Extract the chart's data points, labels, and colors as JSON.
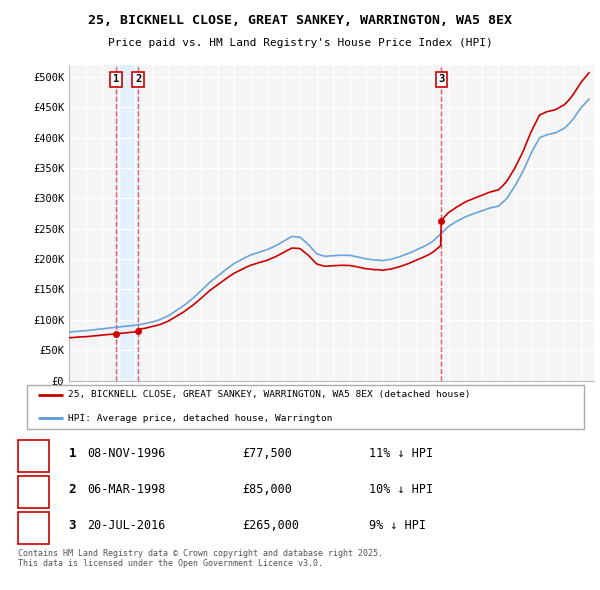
{
  "title": "25, BICKNELL CLOSE, GREAT SANKEY, WARRINGTON, WA5 8EX",
  "subtitle": "Price paid vs. HM Land Registry's House Price Index (HPI)",
  "ylim": [
    0,
    520000
  ],
  "yticks": [
    0,
    50000,
    100000,
    150000,
    200000,
    250000,
    300000,
    350000,
    400000,
    450000,
    500000
  ],
  "ytick_labels": [
    "£0",
    "£50K",
    "£100K",
    "£150K",
    "£200K",
    "£250K",
    "£300K",
    "£350K",
    "£400K",
    "£450K",
    "£500K"
  ],
  "xlim_start": 1994.0,
  "xlim_end": 2025.8,
  "hpi_color": "#5b9bd5",
  "price_color": "#cc0000",
  "dashed_line_color": "#e06060",
  "shade_color": "#ddeeff",
  "legend_label_red": "25, BICKNELL CLOSE, GREAT SANKEY, WARRINGTON, WA5 8EX (detached house)",
  "legend_label_blue": "HPI: Average price, detached house, Warrington",
  "transaction_labels": [
    "1",
    "2",
    "3"
  ],
  "transaction_dates": [
    1996.86,
    1998.18,
    2016.55
  ],
  "transaction_prices": [
    77500,
    85000,
    265000
  ],
  "transaction_text": [
    [
      "1",
      "08-NOV-1996",
      "£77,500",
      "11% ↓ HPI"
    ],
    [
      "2",
      "06-MAR-1998",
      "£85,000",
      "10% ↓ HPI"
    ],
    [
      "3",
      "20-JUL-2016",
      "£265,000",
      "9% ↓ HPI"
    ]
  ],
  "footer": "Contains HM Land Registry data © Crown copyright and database right 2025.\nThis data is licensed under the Open Government Licence v3.0.",
  "bg_color": "#ffffff",
  "plot_bg_color": "#f5f5f5",
  "grid_color": "#ffffff",
  "hpi_keypoints_t": [
    1994.0,
    1994.5,
    1995.0,
    1995.5,
    1996.0,
    1996.5,
    1997.0,
    1997.5,
    1998.0,
    1998.5,
    1999.0,
    1999.5,
    2000.0,
    2000.5,
    2001.0,
    2001.5,
    2002.0,
    2002.5,
    2003.0,
    2003.5,
    2004.0,
    2004.5,
    2005.0,
    2005.5,
    2006.0,
    2006.5,
    2007.0,
    2007.5,
    2008.0,
    2008.5,
    2009.0,
    2009.5,
    2010.0,
    2010.5,
    2011.0,
    2011.5,
    2012.0,
    2012.5,
    2013.0,
    2013.5,
    2014.0,
    2014.5,
    2015.0,
    2015.5,
    2016.0,
    2016.5,
    2017.0,
    2017.5,
    2018.0,
    2018.5,
    2019.0,
    2019.5,
    2020.0,
    2020.5,
    2021.0,
    2021.5,
    2022.0,
    2022.5,
    2023.0,
    2023.5,
    2024.0,
    2024.5,
    2025.0,
    2025.5
  ],
  "hpi_keypoints_v": [
    80000,
    81000,
    82000,
    83500,
    85000,
    86500,
    88000,
    89500,
    91000,
    93000,
    96000,
    100000,
    106000,
    115000,
    124000,
    135000,
    148000,
    161000,
    172000,
    183000,
    193000,
    200000,
    207000,
    212000,
    216000,
    222000,
    230000,
    238000,
    237000,
    225000,
    210000,
    206000,
    207000,
    208000,
    208000,
    205000,
    202000,
    200000,
    199000,
    201000,
    205000,
    210000,
    216000,
    222000,
    230000,
    242000,
    255000,
    263000,
    270000,
    275000,
    280000,
    285000,
    288000,
    300000,
    320000,
    345000,
    375000,
    400000,
    405000,
    408000,
    415000,
    430000,
    450000,
    465000
  ]
}
